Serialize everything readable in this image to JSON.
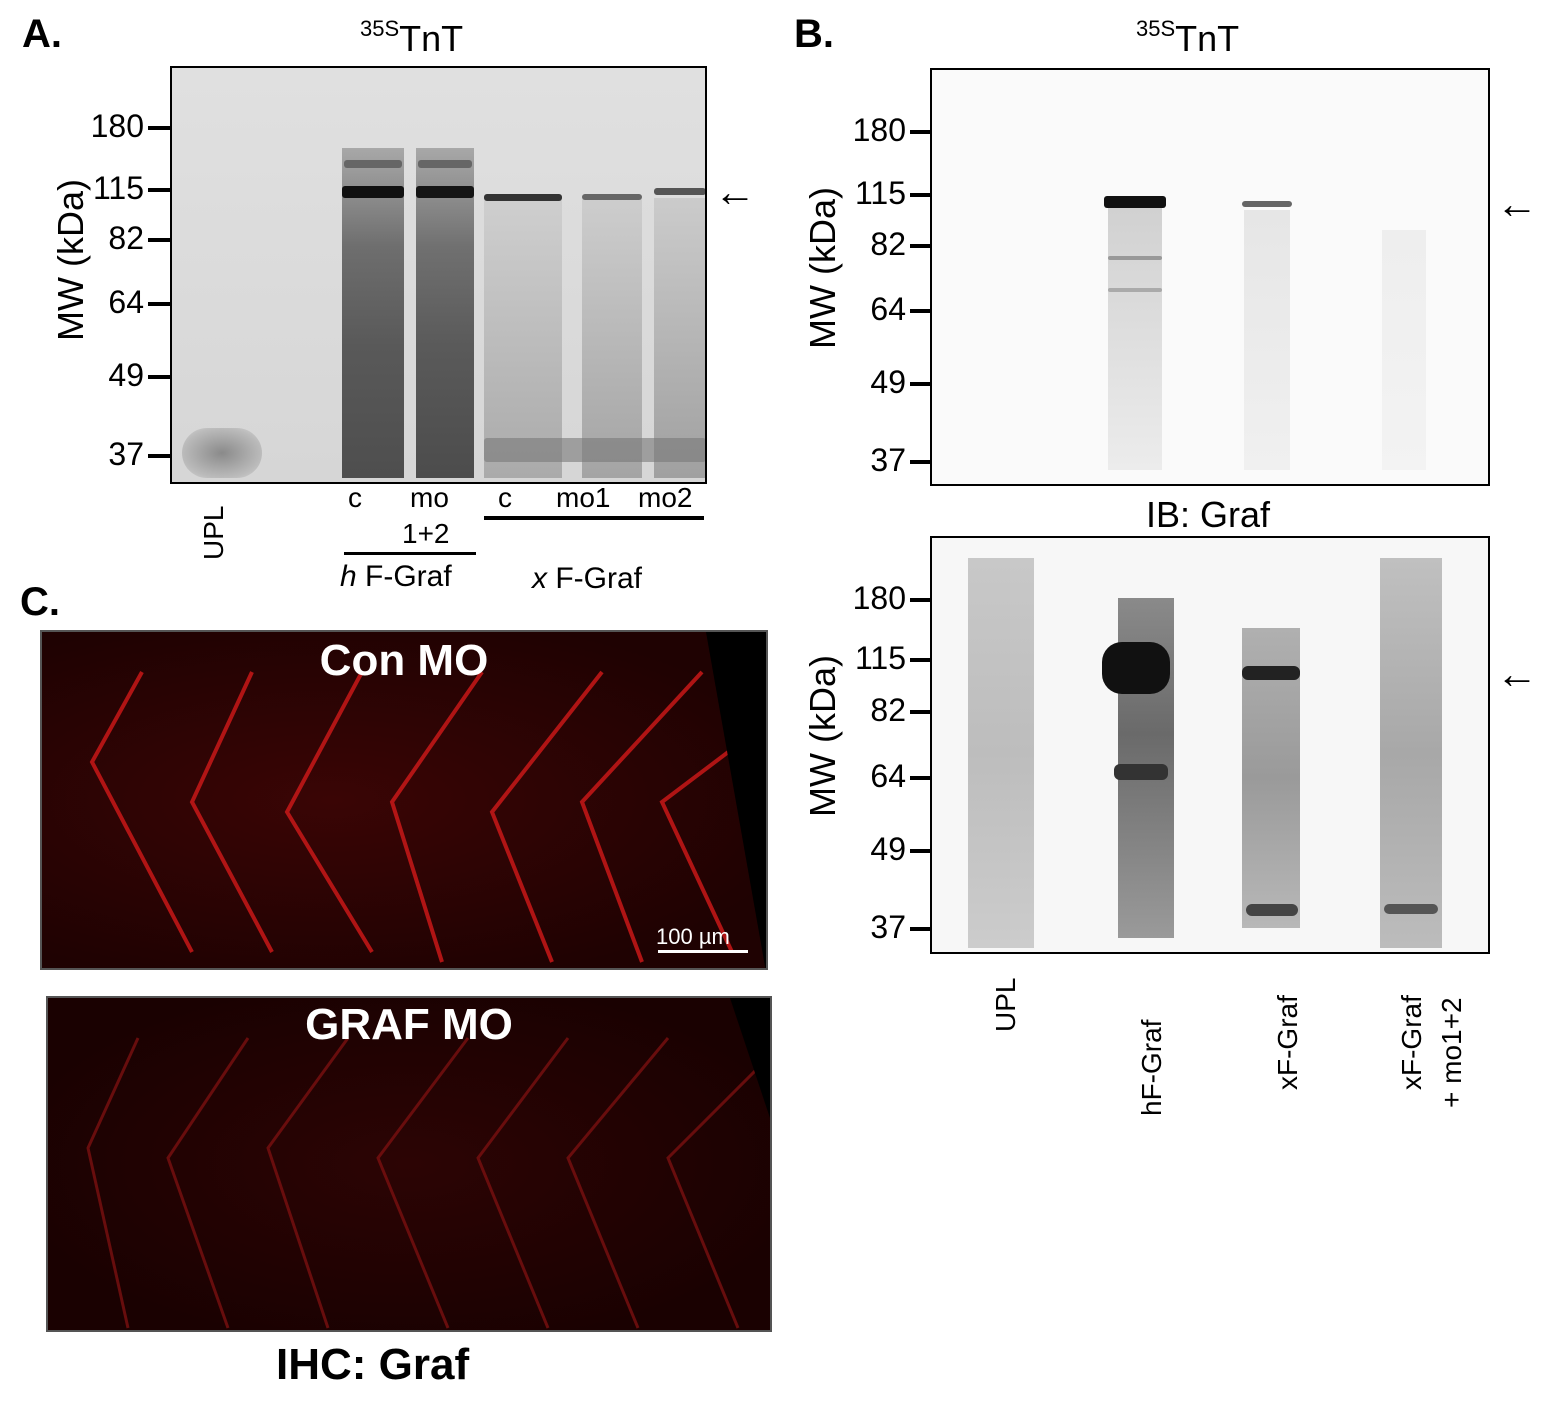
{
  "panelA": {
    "letter": "A.",
    "title_sup": "35S",
    "title_main": "TnT",
    "ylabel": "MW (kDa)",
    "ticks": [
      "180",
      "115",
      "82",
      "64",
      "49",
      "37"
    ],
    "lane_labels": {
      "upl": "UPL",
      "c1": "c",
      "mo": "mo",
      "mo_sub": "1+2",
      "c2": "c",
      "mo1": "mo1",
      "mo2": "mo2"
    },
    "group_h_italic": "h",
    "group_h_rest": " F-Graf",
    "group_x_italic": "x",
    "group_x_rest": " F-Graf",
    "arrow": "←"
  },
  "panelB": {
    "letter": "B.",
    "title_sup": "35S",
    "title_main": "TnT",
    "ylabel": "MW (kDa)",
    "ticks": [
      "180",
      "115",
      "82",
      "64",
      "49",
      "37"
    ],
    "arrow": "←",
    "ib_label": "IB: Graf",
    "lower_ylabel": "MW (kDa)",
    "lower_ticks": [
      "180",
      "115",
      "82",
      "64",
      "49",
      "37"
    ],
    "lower_arrow": "←",
    "lane_labels": [
      "UPL",
      "hF-Graf",
      "xF-Graf",
      "xF-Graf",
      "+ mo1+2"
    ]
  },
  "panelC": {
    "letter": "C.",
    "con_title": "Con MO",
    "graf_title": "GRAF MO",
    "scale_label": "100 µm",
    "ihc_label": "IHC: Graf"
  }
}
